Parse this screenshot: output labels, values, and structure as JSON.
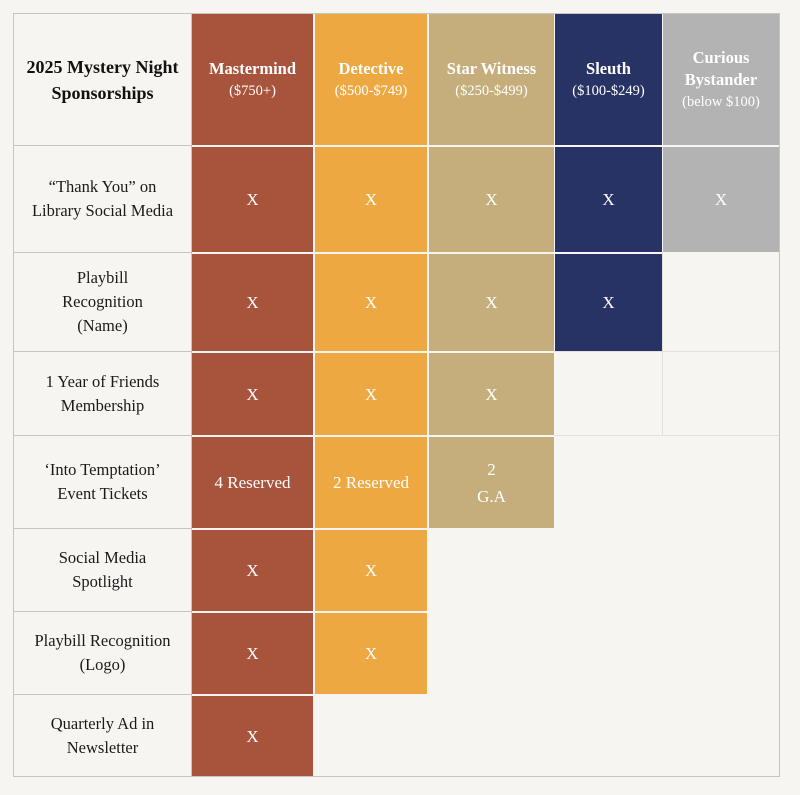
{
  "table_title": "2025 Mystery Night Sponsorships",
  "tiers": [
    {
      "name": "Mastermind",
      "range": "($750+)",
      "color": "#a8533b"
    },
    {
      "name": "Detective",
      "range": "($500-$749)",
      "color": "#eda841"
    },
    {
      "name": "Star Witness",
      "range": "($250-$499)",
      "color": "#c5ae7c"
    },
    {
      "name": "Sleuth",
      "range": "($100-$249)",
      "color": "#283365"
    },
    {
      "name": "Curious Bystander",
      "range": "(below $100)",
      "color": "#b3b3b4"
    }
  ],
  "rows": [
    {
      "benefit": "“Thank You” on Library Social Media",
      "values": [
        "X",
        "X",
        "X",
        "X",
        "X"
      ]
    },
    {
      "benefit": "Playbill Recognition (Name)",
      "values": [
        "X",
        "X",
        "X",
        "X"
      ]
    },
    {
      "benefit": "1 Year of Friends Membership",
      "values": [
        "X",
        "X",
        "X"
      ]
    },
    {
      "benefit": "‘Into Temptation’ Event Tickets",
      "values": [
        "4 Reserved",
        "2 Reserved",
        "2 G.A"
      ]
    },
    {
      "benefit": "Social Media Spotlight",
      "values": [
        "X",
        "X"
      ]
    },
    {
      "benefit": "Playbill Recognition (Logo)",
      "values": [
        "X",
        "X"
      ]
    },
    {
      "benefit": "Quarterly Ad in Newsletter",
      "values": [
        "X"
      ]
    }
  ]
}
